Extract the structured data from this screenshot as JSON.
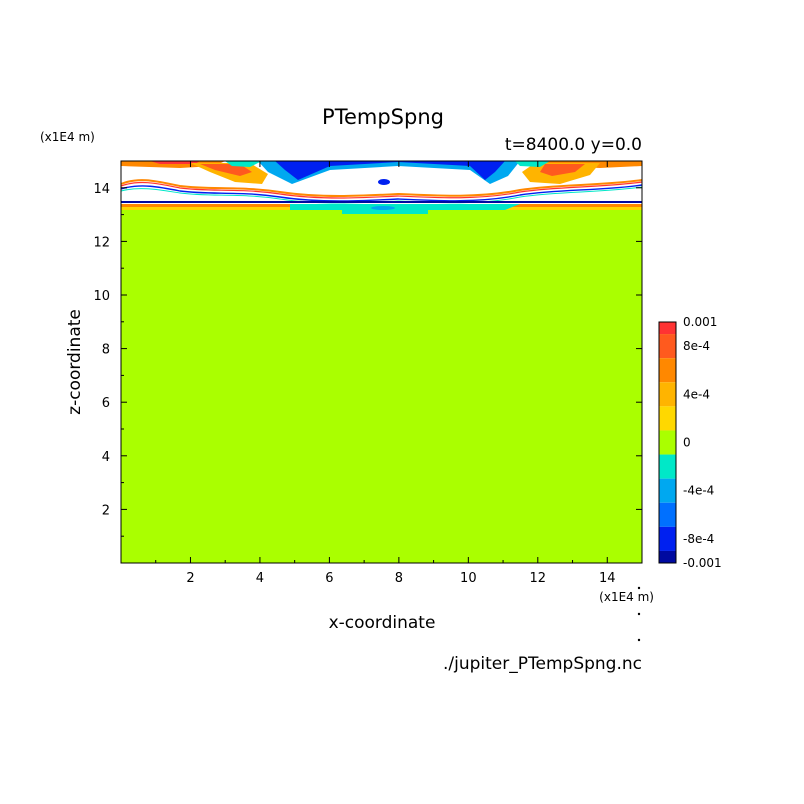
{
  "chart_data": {
    "type": "heatmap",
    "title": "PTempSpng",
    "subtitle": "t=8400.0 y=0.0",
    "xlabel": "x-coordinate",
    "ylabel": "z-coordinate",
    "x_unit": "(x1E4 m)",
    "y_unit": "(x1E4 m)",
    "source_file": "./jupiter_PTempSpng.nc",
    "xlim": [
      0,
      15
    ],
    "ylim": [
      0,
      15
    ],
    "x_ticks": [
      "2",
      "4",
      "6",
      "8",
      "10",
      "12",
      "14"
    ],
    "x_tick_values": [
      2,
      4,
      6,
      8,
      10,
      12,
      14
    ],
    "y_ticks": [
      "2",
      "4",
      "6",
      "8",
      "10",
      "12",
      "14"
    ],
    "y_tick_values": [
      2,
      4,
      6,
      8,
      10,
      12,
      14
    ],
    "background_value": 0,
    "colorbar": {
      "labels": [
        "0.001",
        "8e-4",
        "4e-4",
        "0",
        "-4e-4",
        "-8e-4",
        "-0.001"
      ],
      "label_values": [
        0.001,
        0.0008,
        0.0004,
        0,
        -0.0004,
        -0.0008,
        -0.001
      ],
      "min": -0.001,
      "max": 0.001,
      "levels": [
        {
          "from": 0.0009,
          "to": 0.001,
          "color": "#ff3333"
        },
        {
          "from": 0.0007,
          "to": 0.0009,
          "color": "#ff5a1e"
        },
        {
          "from": 0.0005,
          "to": 0.0007,
          "color": "#ff8800"
        },
        {
          "from": 0.0003,
          "to": 0.0005,
          "color": "#ffb400"
        },
        {
          "from": 0.0001,
          "to": 0.0003,
          "color": "#ffd800"
        },
        {
          "from": -0.0001,
          "to": 0.0001,
          "color": "#aaff00"
        },
        {
          "from": -0.0003,
          "to": -0.0001,
          "color": "#00e8c8"
        },
        {
          "from": -0.0005,
          "to": -0.0003,
          "color": "#00a8f0"
        },
        {
          "from": -0.0007,
          "to": -0.0005,
          "color": "#0070ff"
        },
        {
          "from": -0.0009,
          "to": -0.0007,
          "color": "#0020f0"
        },
        {
          "from": -0.001,
          "to": -0.0009,
          "color": "#000aa0"
        }
      ]
    }
  }
}
